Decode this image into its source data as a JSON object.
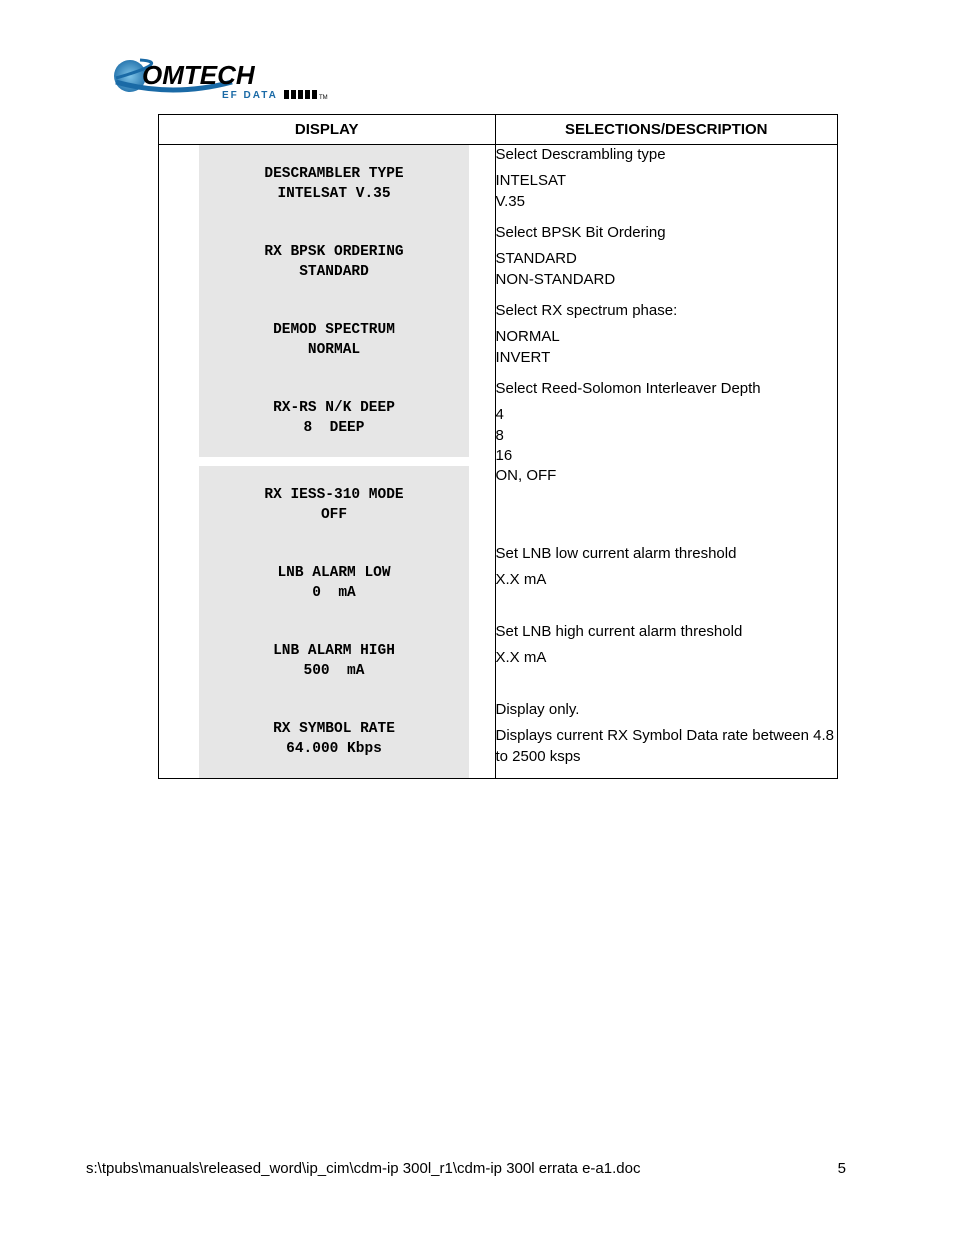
{
  "logo": {
    "name": "COMTECH",
    "subtitle": "EF DATA",
    "primary_color": "#1a6aa6",
    "text_color": "#000000"
  },
  "table": {
    "header_display": "DISPLAY",
    "header_desc": "SELECTIONS/DESCRIPTION",
    "rows": [
      {
        "lcd_line1": "DESCRAMBLER TYPE",
        "lcd_line2": "INTELSAT V.35",
        "desc_intro": "Select Descrambling type",
        "desc_options": [
          "INTELSAT",
          "V.35"
        ]
      },
      {
        "lcd_line1": "RX BPSK ORDERING",
        "lcd_line2": "STANDARD",
        "desc_intro": "Select BPSK Bit Ordering",
        "desc_options": [
          "STANDARD",
          "NON-STANDARD"
        ]
      },
      {
        "lcd_line1": "DEMOD SPECTRUM",
        "lcd_line2": "NORMAL",
        "desc_intro": "Select RX spectrum phase:",
        "desc_options": [
          "NORMAL",
          "INVERT"
        ]
      },
      {
        "lcd_line1": "RX-RS N/K DEEP",
        "lcd_line2": "8  DEEP",
        "desc_intro": "Select Reed-Solomon Interleaver Depth",
        "desc_options": [
          "4",
          "8",
          "16"
        ]
      },
      {
        "lcd_line1": "RX IESS-310 MODE",
        "lcd_line2": "OFF",
        "desc_intro": "ON, OFF",
        "desc_options": []
      },
      {
        "lcd_line1": "LNB ALARM LOW",
        "lcd_line2": "0  mA",
        "desc_intro": "Set LNB low current alarm threshold",
        "desc_options": [
          "X.X mA"
        ]
      },
      {
        "lcd_line1": "LNB ALARM HIGH",
        "lcd_line2": "500  mA",
        "desc_intro": "Set LNB high current alarm threshold",
        "desc_options": [
          "X.X mA"
        ]
      },
      {
        "lcd_line1": "RX SYMBOL RATE",
        "lcd_line2": "64.000 Kbps",
        "desc_intro": "Display only.",
        "desc_options": [
          "Displays current RX Symbol Data rate between 4.8 to 2500 ksps"
        ]
      }
    ]
  },
  "footer": {
    "path": "s:\\tpubs\\manuals\\released_word\\ip_cim\\cdm-ip 300l_r1\\cdm-ip 300l errata e-a1.doc",
    "page": "5"
  }
}
